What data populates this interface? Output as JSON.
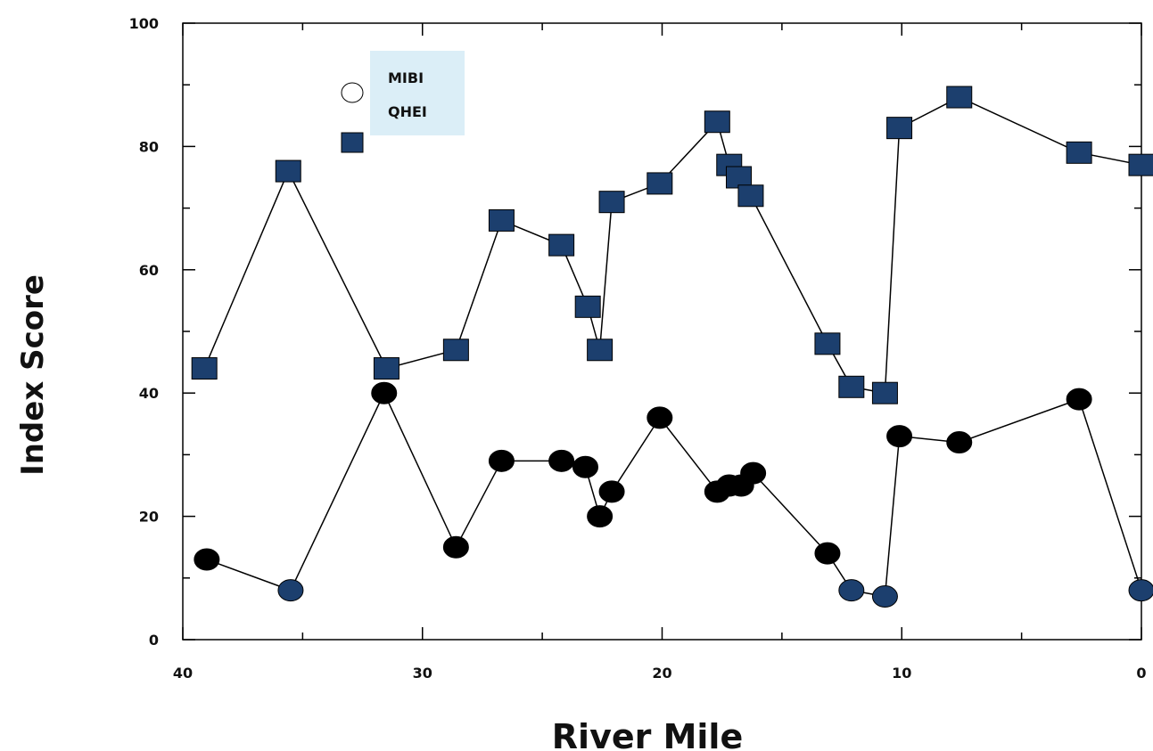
{
  "chart_data": {
    "type": "line",
    "title": "",
    "xlabel": "River Mile",
    "ylabel": "Index Score",
    "xlim": [
      40,
      0
    ],
    "ylim": [
      0,
      100
    ],
    "x_ticks": [
      40,
      30,
      20,
      10,
      0
    ],
    "x_tick_labels": [
      "40",
      "30",
      "20",
      "10",
      "0"
    ],
    "y_ticks": [
      0,
      20,
      40,
      60,
      80,
      100
    ],
    "y_tick_labels": [
      "0",
      "20",
      "40",
      "60",
      "80",
      "100"
    ],
    "grid": false,
    "legend": {
      "placement": "top-left",
      "background": "#dbeef7",
      "entries": [
        "MIBI",
        "QHEI"
      ]
    },
    "series": [
      {
        "name": "MIBI",
        "marker": "ellipse",
        "color": "#000000",
        "alt_color": "#1c3f6e",
        "x": [
          39.0,
          35.5,
          31.6,
          28.6,
          26.7,
          24.2,
          23.2,
          22.6,
          22.1,
          20.1,
          17.7,
          17.2,
          16.7,
          16.2,
          13.1,
          12.1,
          10.7,
          10.1,
          7.6,
          2.6,
          0.0
        ],
        "y": [
          13,
          8,
          40,
          15,
          29,
          29,
          28,
          20,
          24,
          36,
          24,
          25,
          25,
          27,
          14,
          8,
          7,
          33,
          32,
          39,
          8
        ]
      },
      {
        "name": "QHEI",
        "marker": "square",
        "color": "#1c3f6e",
        "x": [
          39.1,
          35.6,
          31.5,
          28.6,
          26.7,
          24.2,
          23.1,
          22.6,
          22.1,
          20.1,
          17.7,
          17.2,
          16.8,
          16.3,
          13.1,
          12.1,
          10.7,
          10.1,
          7.6,
          2.6,
          0.0
        ],
        "y": [
          44,
          76,
          44,
          47,
          68,
          64,
          54,
          47,
          71,
          74,
          84,
          77,
          75,
          72,
          48,
          41,
          40,
          83,
          88,
          79,
          77
        ]
      }
    ]
  }
}
